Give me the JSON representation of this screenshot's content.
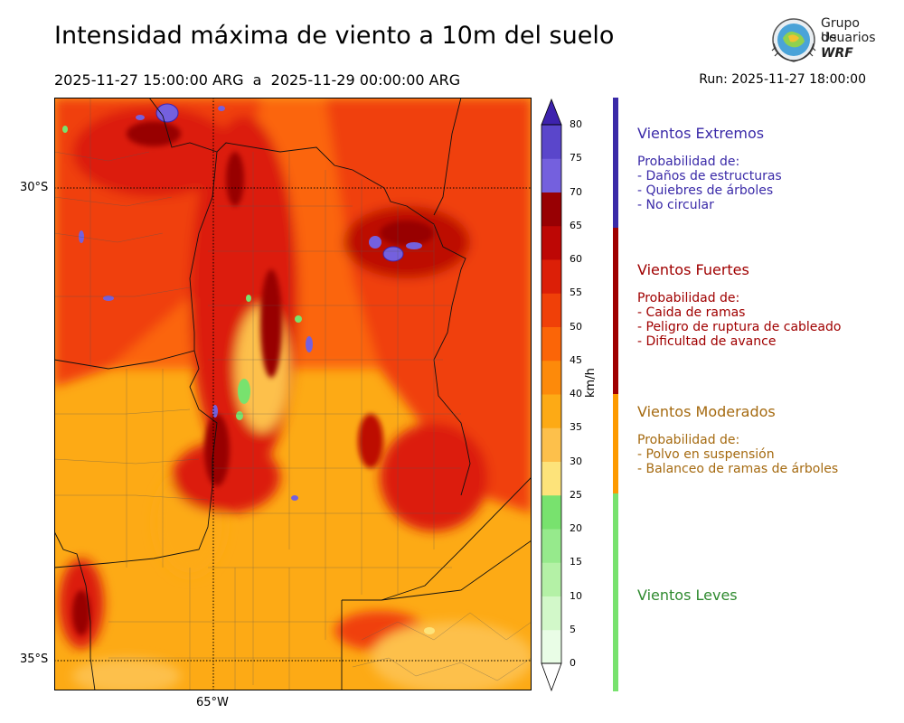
{
  "title": "Intensidad máxima de viento a 10m del suelo",
  "period": {
    "start": "2025-11-27 15:00:00 ARG",
    "separator": "a",
    "end": "2025-11-29 00:00:00 ARG"
  },
  "run": "Run: 2025-11-27 18:00:00",
  "logo": {
    "line1": "Grupo de",
    "line2": "Usuarios",
    "line3": "WRF"
  },
  "map": {
    "lat_labels": [
      "30°S",
      "35°S"
    ],
    "lon_labels": [
      "65°W"
    ]
  },
  "colorbar": {
    "unit": "km/h",
    "ticks": [
      "80",
      "75",
      "70",
      "65",
      "60",
      "55",
      "50",
      "45",
      "40",
      "35",
      "30",
      "25",
      "20",
      "15",
      "10",
      "5",
      "0"
    ],
    "colors": [
      "#e9fde6",
      "#d2f8c9",
      "#b4f1a6",
      "#96ea8c",
      "#78e26e",
      "#fde37a",
      "#fdc04b",
      "#fdaa15",
      "#fd8a0a",
      "#fb6507",
      "#f04008",
      "#dc1f07",
      "#bd0705",
      "#980003",
      "#7460de",
      "#5a46cb",
      "#4a33c0",
      "#3d22ad"
    ]
  },
  "categories": [
    {
      "title": "Vientos Extremos",
      "color": "#3a2aa8",
      "lines": [
        "Probabilidad de:",
        "- Daños de estructuras",
        "- Quiebres de árboles",
        "- No circular"
      ]
    },
    {
      "title": "Vientos Fuertes",
      "color": "#a00000",
      "lines": [
        "Probabilidad de:",
        "- Caida de ramas",
        "- Peligro de ruptura de cableado",
        "- Dificultad de avance"
      ]
    },
    {
      "title": "Vientos Moderados",
      "color": "#a56a10",
      "lines": [
        "Probabilidad de:",
        "- Polvo en suspensión",
        "- Balanceo de ramas de árboles"
      ]
    },
    {
      "title": "Vientos Leves",
      "color": "#2f8a2f",
      "lines": []
    }
  ]
}
